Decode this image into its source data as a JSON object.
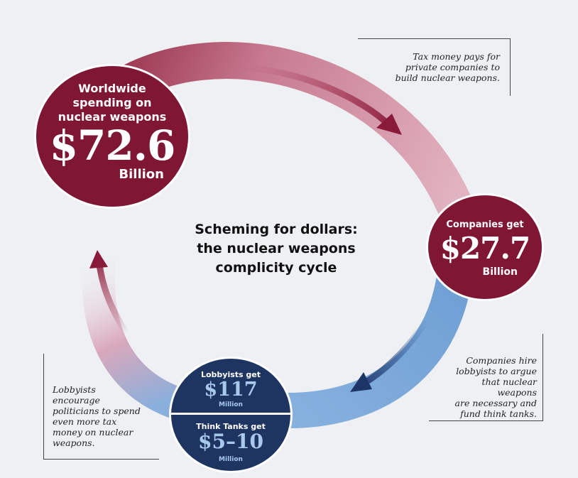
{
  "title": "Scheming for dollars: the nuclear weapons complicity cycle",
  "title_lines": [
    "Scheming for dollars:",
    "the nuclear weapons",
    "complicity cycle"
  ],
  "nodes": {
    "worldwide": {
      "label_lines": [
        "Worldwide",
        "spending on",
        "nuclear weapons"
      ],
      "amount": "$72.6",
      "unit": "Billion"
    },
    "companies": {
      "label": "Companies get",
      "amount": "$27.7",
      "unit": "Billion"
    },
    "lobbyists": {
      "label": "Lobbyists get",
      "amount": "$117",
      "unit": "Million"
    },
    "think_tanks": {
      "label": "Think Tanks get",
      "amount": "$5–10",
      "unit": "Million"
    }
  },
  "notes": {
    "tax_money": [
      "Tax money pays for",
      "private companies to",
      "build nuclear weapons."
    ],
    "companies_hire": [
      "Companies hire",
      "lobbyists to argue",
      "that nuclear weapons",
      "are necessary and",
      "fund think tanks."
    ],
    "lobbyists_encourage": [
      "Lobbyists",
      "encourage",
      "politicians to spend",
      "even more tax",
      "money on nuclear",
      "weapons."
    ]
  },
  "colors": {
    "background": "#eef0f3",
    "wine": "#7f1633",
    "navy": "#1e3461",
    "light_blue_text": "#a9c9ec",
    "band_pink": "#e4b3c2",
    "band_blue": "#83aedc"
  }
}
